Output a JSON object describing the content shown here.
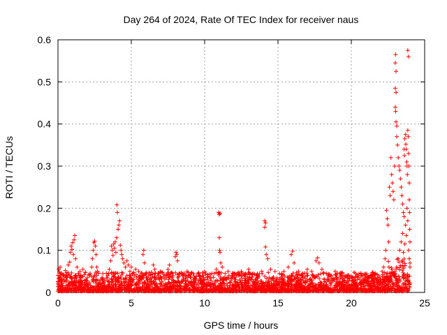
{
  "chart_data": {
    "type": "scatter",
    "title": "Day 264 of 2024, Rate Of TEC Index for receiver naus",
    "xlabel": "GPS time / hours",
    "ylabel": "ROTI / TECUs",
    "xlim": [
      0,
      25
    ],
    "ylim": [
      0,
      0.6
    ],
    "x_ticks": [
      0,
      5,
      10,
      15,
      20,
      25
    ],
    "y_ticks": [
      0,
      0.1,
      0.2,
      0.3,
      0.4,
      0.5,
      0.6
    ],
    "x_tick_labels": [
      "0",
      "5",
      "10",
      "15",
      "20",
      "25"
    ],
    "y_tick_labels": [
      "0",
      "0.1",
      "0.2",
      "0.3",
      "0.4",
      "0.5",
      "0.6"
    ],
    "grid": true,
    "marker": "plus",
    "series_color": "#ff0000",
    "points": [
      [
        0.05,
        0.055
      ],
      [
        0.1,
        0.048
      ],
      [
        0.15,
        0.06
      ],
      [
        0.2,
        0.035
      ],
      [
        0.3,
        0.042
      ],
      [
        0.4,
        0.03
      ],
      [
        0.5,
        0.052
      ],
      [
        0.6,
        0.04
      ],
      [
        0.7,
        0.065
      ],
      [
        0.8,
        0.072
      ],
      [
        0.85,
        0.095
      ],
      [
        0.9,
        0.11
      ],
      [
        0.95,
        0.102
      ],
      [
        1.0,
        0.118
      ],
      [
        1.05,
        0.09
      ],
      [
        1.1,
        0.125
      ],
      [
        1.15,
        0.135
      ],
      [
        1.2,
        0.08
      ],
      [
        1.3,
        0.06
      ],
      [
        1.4,
        0.045
      ],
      [
        1.5,
        0.05
      ],
      [
        1.6,
        0.038
      ],
      [
        1.7,
        0.055
      ],
      [
        1.8,
        0.042
      ],
      [
        1.9,
        0.03
      ],
      [
        2.0,
        0.035
      ],
      [
        2.2,
        0.045
      ],
      [
        2.3,
        0.06
      ],
      [
        2.35,
        0.08
      ],
      [
        2.4,
        0.1
      ],
      [
        2.45,
        0.118
      ],
      [
        2.5,
        0.122
      ],
      [
        2.55,
        0.11
      ],
      [
        2.6,
        0.09
      ],
      [
        2.65,
        0.06
      ],
      [
        2.7,
        0.05
      ],
      [
        2.9,
        0.03
      ],
      [
        3.0,
        0.035
      ],
      [
        3.2,
        0.028
      ],
      [
        3.4,
        0.04
      ],
      [
        3.5,
        0.055
      ],
      [
        3.6,
        0.075
      ],
      [
        3.65,
        0.11
      ],
      [
        3.7,
        0.1
      ],
      [
        3.75,
        0.088
      ],
      [
        3.8,
        0.115
      ],
      [
        3.85,
        0.105
      ],
      [
        3.9,
        0.12
      ],
      [
        3.95,
        0.095
      ],
      [
        4.0,
        0.13
      ],
      [
        4.02,
        0.208
      ],
      [
        4.05,
        0.19
      ],
      [
        4.1,
        0.15
      ],
      [
        4.15,
        0.16
      ],
      [
        4.2,
        0.17
      ],
      [
        4.25,
        0.112
      ],
      [
        4.3,
        0.1
      ],
      [
        4.35,
        0.09
      ],
      [
        4.4,
        0.08
      ],
      [
        4.5,
        0.07
      ],
      [
        4.6,
        0.06
      ],
      [
        4.7,
        0.075
      ],
      [
        4.8,
        0.065
      ],
      [
        4.9,
        0.05
      ],
      [
        5.0,
        0.06
      ],
      [
        5.1,
        0.045
      ],
      [
        5.3,
        0.055
      ],
      [
        5.5,
        0.05
      ],
      [
        5.8,
        0.09
      ],
      [
        5.85,
        0.1
      ],
      [
        5.9,
        0.07
      ],
      [
        6.0,
        0.045
      ],
      [
        6.3,
        0.04
      ],
      [
        6.5,
        0.065
      ],
      [
        6.6,
        0.055
      ],
      [
        6.8,
        0.04
      ],
      [
        7.0,
        0.05
      ],
      [
        7.2,
        0.038
      ],
      [
        7.5,
        0.055
      ],
      [
        7.6,
        0.065
      ],
      [
        7.8,
        0.045
      ],
      [
        8.0,
        0.085
      ],
      [
        8.05,
        0.095
      ],
      [
        8.1,
        0.09
      ],
      [
        8.15,
        0.075
      ],
      [
        8.3,
        0.045
      ],
      [
        8.5,
        0.04
      ],
      [
        8.8,
        0.05
      ],
      [
        9.0,
        0.042
      ],
      [
        9.3,
        0.035
      ],
      [
        9.6,
        0.045
      ],
      [
        9.9,
        0.04
      ],
      [
        10.0,
        0.05
      ],
      [
        10.2,
        0.038
      ],
      [
        10.5,
        0.045
      ],
      [
        10.8,
        0.055
      ],
      [
        10.95,
        0.19
      ],
      [
        11.0,
        0.185
      ],
      [
        11.05,
        0.188
      ],
      [
        11.0,
        0.13
      ],
      [
        11.02,
        0.1
      ],
      [
        11.05,
        0.095
      ],
      [
        11.1,
        0.07
      ],
      [
        11.2,
        0.06
      ],
      [
        11.4,
        0.045
      ],
      [
        11.6,
        0.05
      ],
      [
        11.9,
        0.045
      ],
      [
        12.2,
        0.04
      ],
      [
        12.5,
        0.05
      ],
      [
        12.8,
        0.045
      ],
      [
        13.0,
        0.055
      ],
      [
        13.3,
        0.045
      ],
      [
        13.6,
        0.04
      ],
      [
        13.9,
        0.05
      ],
      [
        14.1,
        0.17
      ],
      [
        14.15,
        0.165
      ],
      [
        14.1,
        0.155
      ],
      [
        14.15,
        0.108
      ],
      [
        14.2,
        0.09
      ],
      [
        14.3,
        0.08
      ],
      [
        14.5,
        0.055
      ],
      [
        14.8,
        0.05
      ],
      [
        15.1,
        0.045
      ],
      [
        15.4,
        0.05
      ],
      [
        15.7,
        0.06
      ],
      [
        15.9,
        0.09
      ],
      [
        16.0,
        0.098
      ],
      [
        16.1,
        0.07
      ],
      [
        16.4,
        0.05
      ],
      [
        16.7,
        0.045
      ],
      [
        17.0,
        0.055
      ],
      [
        17.3,
        0.05
      ],
      [
        17.6,
        0.075
      ],
      [
        17.7,
        0.082
      ],
      [
        17.8,
        0.07
      ],
      [
        18.0,
        0.055
      ],
      [
        18.3,
        0.045
      ],
      [
        18.6,
        0.04
      ],
      [
        18.9,
        0.05
      ],
      [
        19.2,
        0.045
      ],
      [
        19.5,
        0.04
      ],
      [
        19.8,
        0.035
      ],
      [
        20.1,
        0.035
      ],
      [
        20.4,
        0.03
      ],
      [
        20.7,
        0.04
      ],
      [
        21.0,
        0.035
      ],
      [
        21.3,
        0.04
      ],
      [
        21.5,
        0.045
      ],
      [
        21.7,
        0.03
      ],
      [
        21.9,
        0.035
      ],
      [
        22.1,
        0.05
      ],
      [
        22.2,
        0.06
      ],
      [
        22.3,
        0.08
      ],
      [
        22.35,
        0.1
      ],
      [
        22.4,
        0.195
      ],
      [
        22.45,
        0.175
      ],
      [
        22.5,
        0.16
      ],
      [
        22.55,
        0.12
      ],
      [
        22.6,
        0.25
      ],
      [
        22.65,
        0.23
      ],
      [
        22.7,
        0.32
      ],
      [
        22.75,
        0.28
      ],
      [
        22.8,
        0.26
      ],
      [
        22.85,
        0.24
      ],
      [
        22.9,
        0.22
      ],
      [
        22.95,
        0.3
      ],
      [
        23.0,
        0.545
      ],
      [
        23.02,
        0.565
      ],
      [
        23.05,
        0.525
      ],
      [
        23.0,
        0.485
      ],
      [
        23.05,
        0.475
      ],
      [
        23.0,
        0.44
      ],
      [
        23.02,
        0.43
      ],
      [
        23.05,
        0.405
      ],
      [
        23.1,
        0.395
      ],
      [
        23.1,
        0.37
      ],
      [
        23.15,
        0.35
      ],
      [
        23.2,
        0.32
      ],
      [
        23.25,
        0.3
      ],
      [
        23.3,
        0.29
      ],
      [
        23.35,
        0.27
      ],
      [
        23.4,
        0.25
      ],
      [
        23.45,
        0.23
      ],
      [
        23.5,
        0.21
      ],
      [
        23.55,
        0.19
      ],
      [
        23.6,
        0.34
      ],
      [
        23.62,
        0.325
      ],
      [
        23.65,
        0.365
      ],
      [
        23.7,
        0.375
      ],
      [
        23.72,
        0.352
      ],
      [
        23.75,
        0.34
      ],
      [
        23.78,
        0.31
      ],
      [
        23.8,
        0.3
      ],
      [
        23.82,
        0.28
      ],
      [
        23.85,
        0.575
      ],
      [
        23.9,
        0.56
      ],
      [
        23.85,
        0.385
      ],
      [
        23.88,
        0.37
      ],
      [
        23.9,
        0.33
      ],
      [
        23.92,
        0.3
      ],
      [
        23.95,
        0.26
      ],
      [
        23.95,
        0.22
      ],
      [
        23.97,
        0.19
      ],
      [
        23.98,
        0.15
      ],
      [
        24.0,
        0.12
      ],
      [
        23.9,
        0.1
      ],
      [
        23.95,
        0.08
      ],
      [
        24.0,
        0.06
      ],
      [
        23.6,
        0.18
      ],
      [
        23.7,
        0.16
      ],
      [
        23.5,
        0.14
      ],
      [
        23.4,
        0.12
      ],
      [
        23.3,
        0.1
      ],
      [
        23.2,
        0.08
      ],
      [
        23.1,
        0.06
      ],
      [
        22.9,
        0.04
      ],
      [
        23.8,
        0.2
      ],
      [
        23.85,
        0.17
      ],
      [
        23.75,
        0.135
      ],
      [
        23.65,
        0.115
      ],
      [
        23.55,
        0.095
      ],
      [
        23.45,
        0.075
      ]
    ]
  }
}
